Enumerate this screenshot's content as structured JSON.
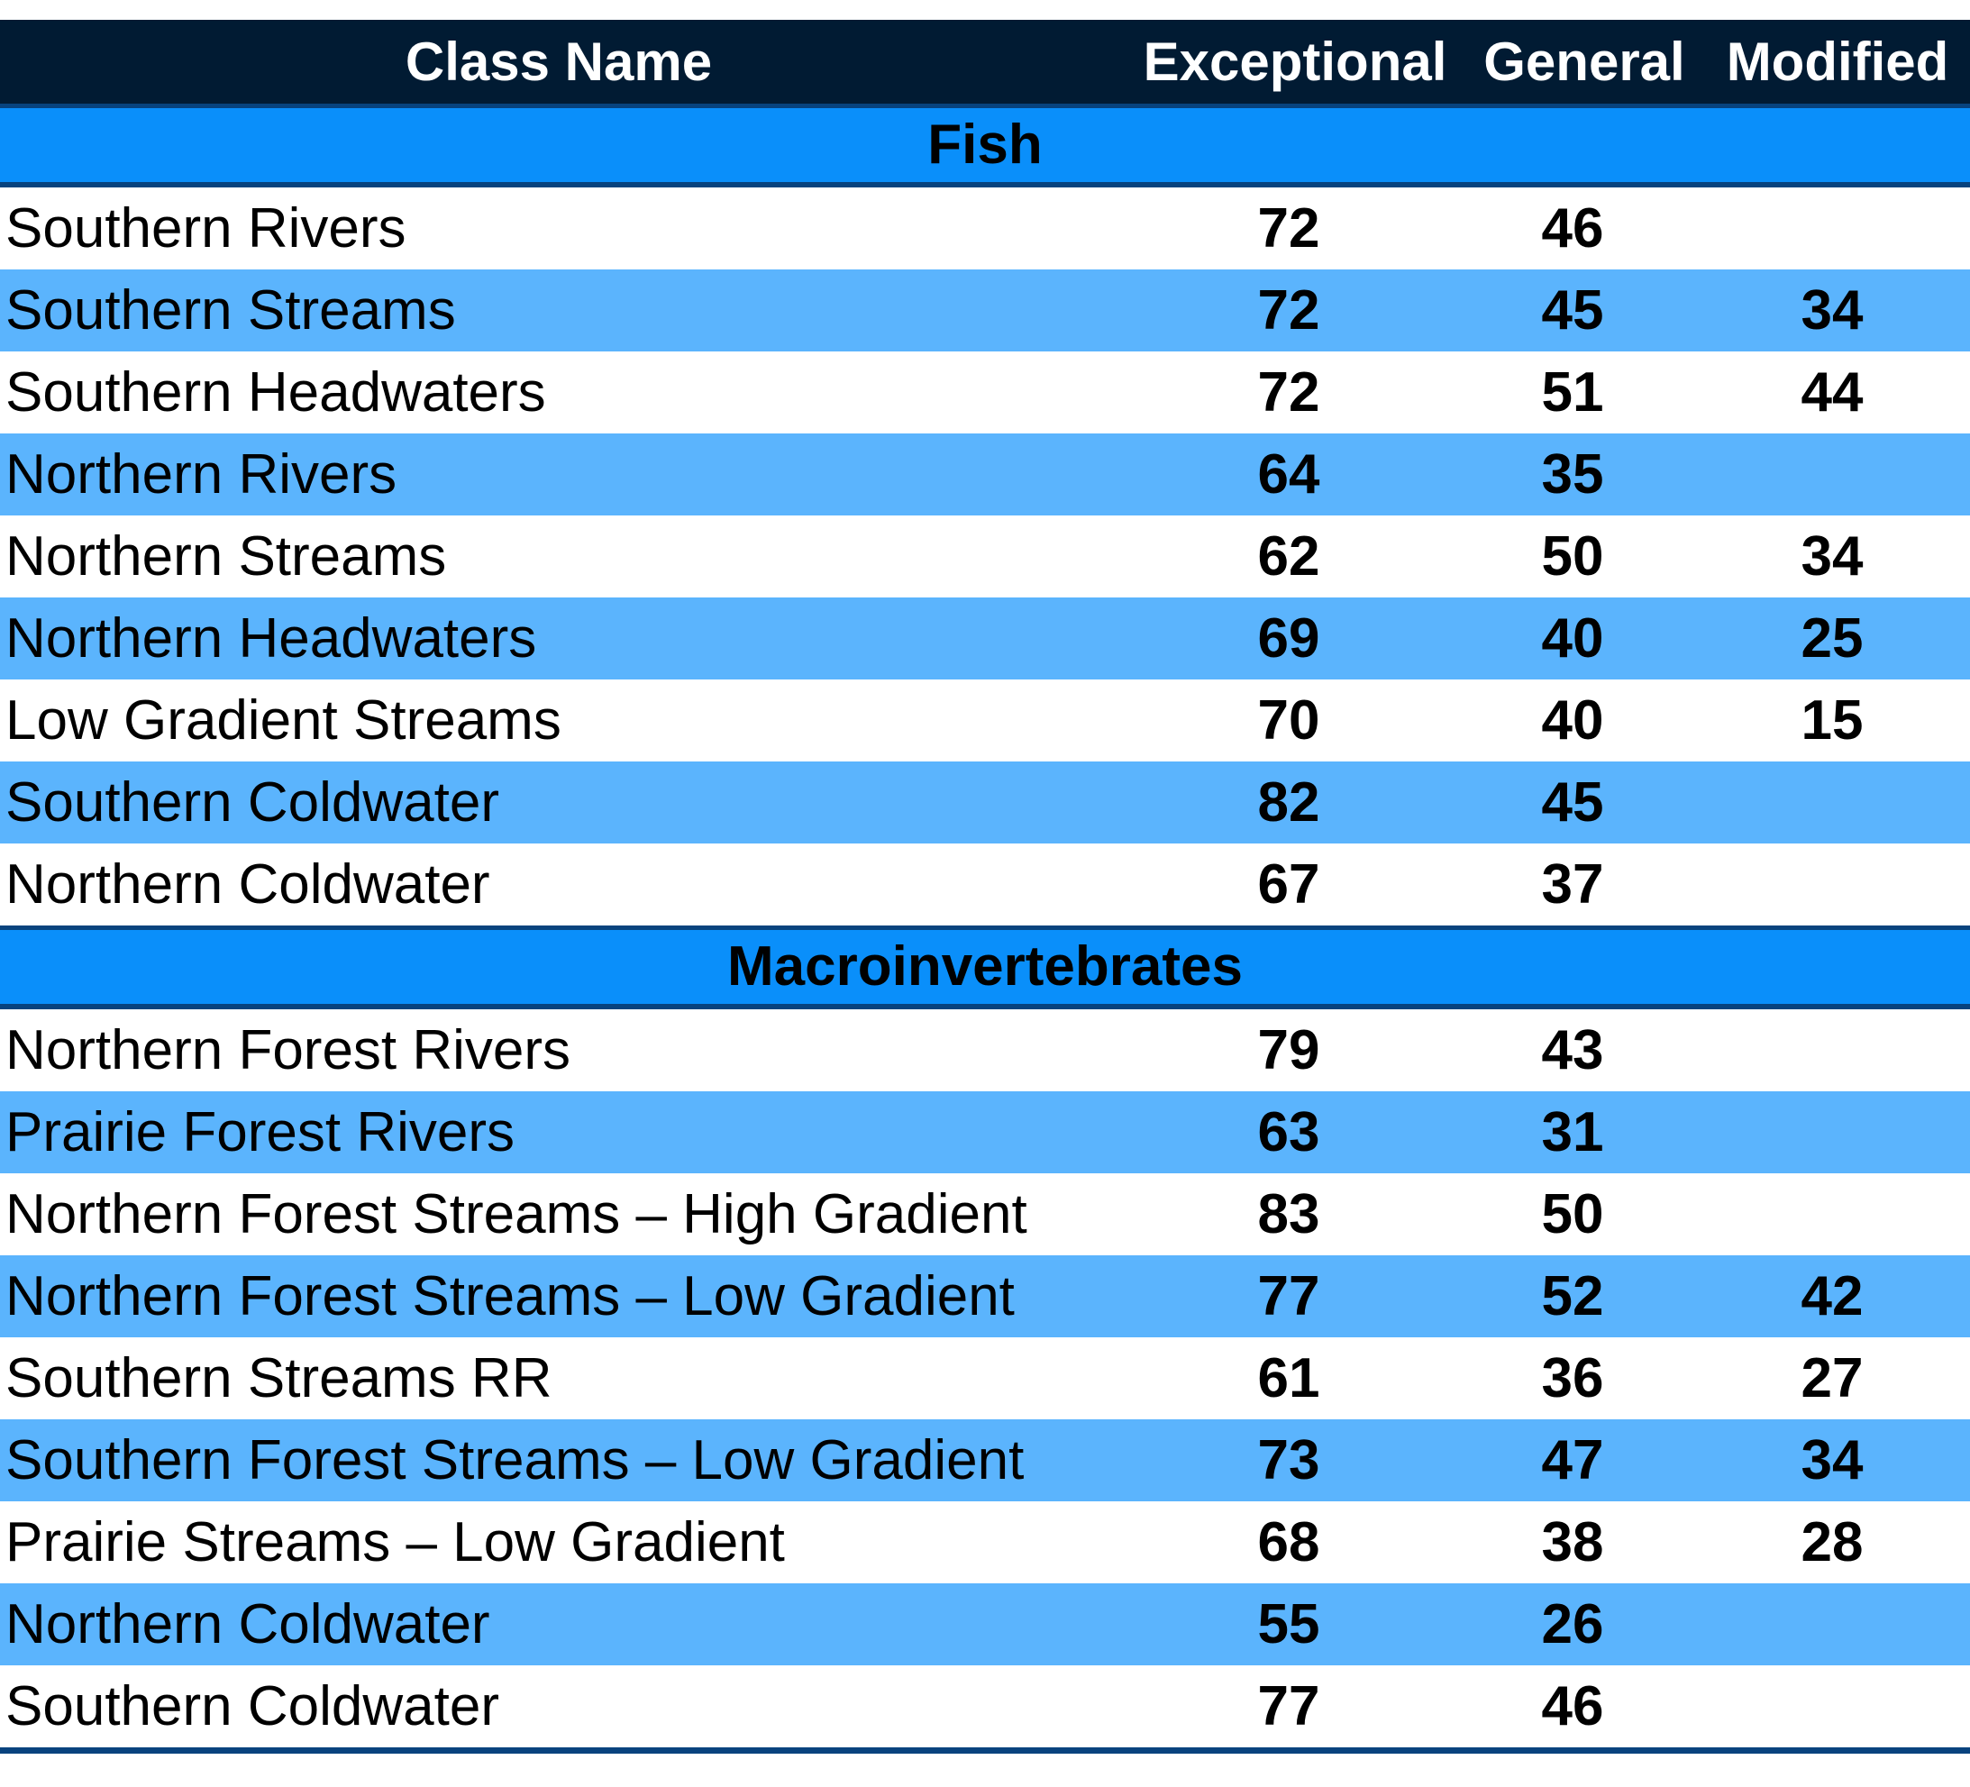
{
  "header": {
    "class_name": "Class Name",
    "exceptional": "Exceptional",
    "general": "General",
    "modified": "Modified"
  },
  "groups": [
    {
      "name": "Fish",
      "rows": [
        {
          "name": "Southern Rivers",
          "exceptional": "72",
          "general": "46",
          "modified": ""
        },
        {
          "name": "Southern Streams",
          "exceptional": "72",
          "general": "45",
          "modified": "34"
        },
        {
          "name": "Southern Headwaters",
          "exceptional": "72",
          "general": "51",
          "modified": "44"
        },
        {
          "name": "Northern Rivers",
          "exceptional": "64",
          "general": "35",
          "modified": ""
        },
        {
          "name": "Northern Streams",
          "exceptional": "62",
          "general": "50",
          "modified": "34"
        },
        {
          "name": "Northern Headwaters",
          "exceptional": "69",
          "general": "40",
          "modified": "25"
        },
        {
          "name": "Low Gradient Streams",
          "exceptional": "70",
          "general": "40",
          "modified": "15"
        },
        {
          "name": "Southern Coldwater",
          "exceptional": "82",
          "general": "45",
          "modified": ""
        },
        {
          "name": "Northern Coldwater",
          "exceptional": "67",
          "general": "37",
          "modified": ""
        }
      ]
    },
    {
      "name": "Macroinvertebrates",
      "rows": [
        {
          "name": "Northern Forest Rivers",
          "exceptional": "79",
          "general": "43",
          "modified": ""
        },
        {
          "name": "Prairie Forest Rivers",
          "exceptional": "63",
          "general": "31",
          "modified": ""
        },
        {
          "name": "Northern Forest Streams – High Gradient",
          "exceptional": "83",
          "general": "50",
          "modified": ""
        },
        {
          "name": "Northern Forest Streams – Low Gradient",
          "exceptional": "77",
          "general": "52",
          "modified": "42"
        },
        {
          "name": "Southern Streams RR",
          "exceptional": "61",
          "general": "36",
          "modified": "27"
        },
        {
          "name": "Southern Forest Streams – Low Gradient",
          "exceptional": "73",
          "general": "47",
          "modified": "34"
        },
        {
          "name": "Prairie Streams – Low Gradient",
          "exceptional": "68",
          "general": "38",
          "modified": "28"
        },
        {
          "name": "Northern Coldwater",
          "exceptional": "55",
          "general": "26",
          "modified": ""
        },
        {
          "name": "Southern Coldwater",
          "exceptional": "77",
          "general": "46",
          "modified": ""
        }
      ]
    }
  ]
}
